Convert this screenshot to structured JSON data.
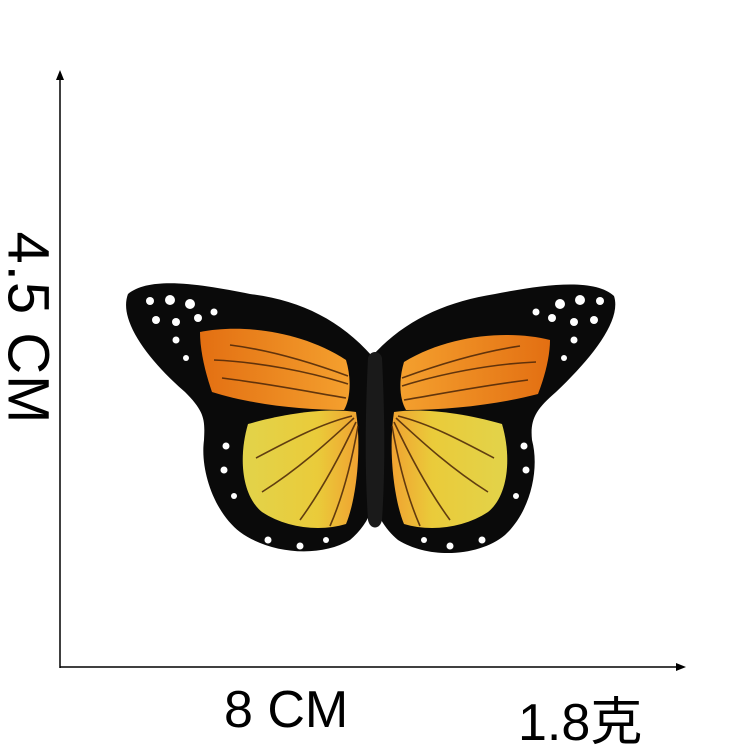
{
  "labels": {
    "height": "4.5 CM",
    "width": "8 CM",
    "weight": "1.8克"
  },
  "colors": {
    "background": "#ffffff",
    "axis": "#000000",
    "outline": "#0a0a0a",
    "wing_orange": "#e8791a",
    "wing_orange_light": "#f19a2c",
    "wing_yellow": "#e6d24a",
    "wing_yellow_light": "#f2e28a",
    "spots": "#ffffff"
  },
  "icons": {
    "product": "butterfly-patch-icon"
  }
}
